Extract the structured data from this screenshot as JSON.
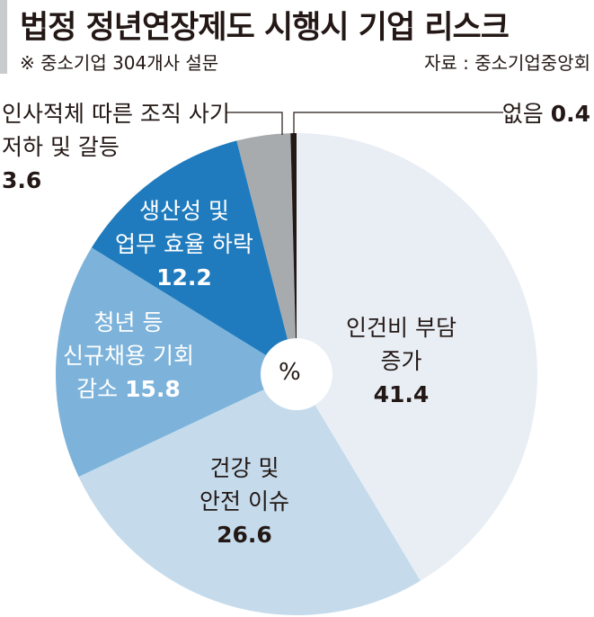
{
  "title": "법정 정년연장제도 시행시 기업 리스크",
  "subtitle": "※ 중소기업 304개사 설문",
  "source": "자료 : 중소기업중앙회",
  "chart_data": {
    "type": "pie",
    "title": "법정 정년연장제도 시행시 기업 리스크",
    "unit": "%",
    "slices": [
      {
        "label": "인건비 부담 증가",
        "value": 41.4,
        "color": "#e8eef4"
      },
      {
        "label": "건강 및 안전 이슈",
        "value": 26.6,
        "color": "#c5dbec"
      },
      {
        "label": "청년 등 신규채용 기회 감소",
        "value": 15.8,
        "color": "#7db3da"
      },
      {
        "label": "생산성 및 업무 효율 하락",
        "value": 12.2,
        "color": "#1f7bbd"
      },
      {
        "label": "인사적체 따른 조직 사기 저하 및 갈등",
        "value": 3.6,
        "color": "#a7abae"
      },
      {
        "label": "없음",
        "value": 0.4,
        "color": "#231815"
      }
    ],
    "labels": {
      "s0a": "인건비 부담",
      "s0b": "증가",
      "v0": "41.4",
      "s1a": "건강 및",
      "s1b": "안전 이슈",
      "v1": "26.6",
      "s2a": "청년 등",
      "s2b": "신규채용 기회",
      "s2c": "감소",
      "v2": "15.8",
      "s3a": "생산성 및",
      "s3b": "업무 효율 하락",
      "v3": "12.2",
      "s4a": "인사적체 따른 조직 사기",
      "s4b": "저하 및 갈등",
      "v4": "3.6",
      "s5a": "없음",
      "v5": "0.4"
    }
  }
}
